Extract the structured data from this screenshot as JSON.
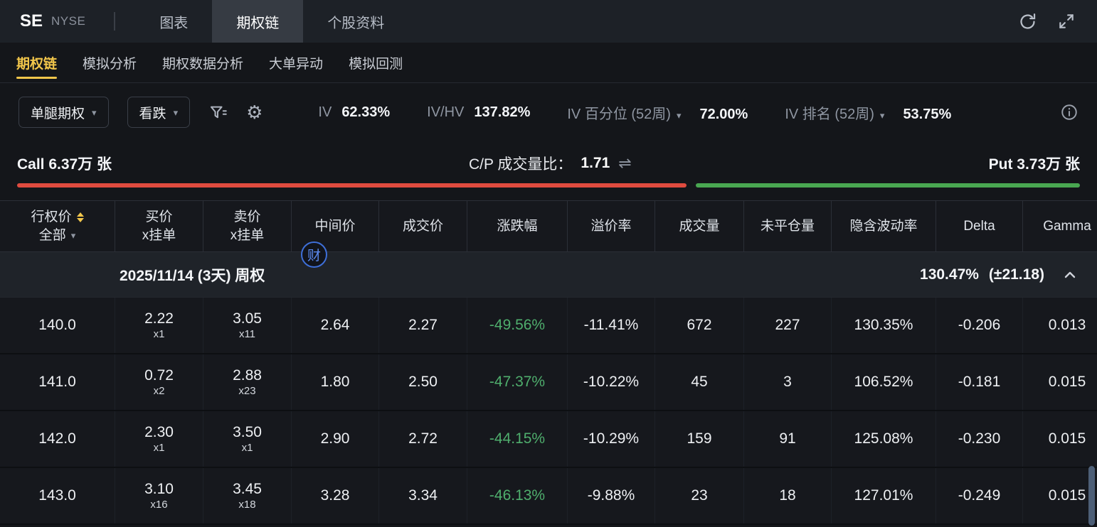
{
  "app_bar": {
    "symbol": "SE",
    "exchange": "NYSE",
    "tabs": [
      {
        "label": "图表",
        "active": false
      },
      {
        "label": "期权链",
        "active": true
      },
      {
        "label": "个股资料",
        "active": false
      }
    ]
  },
  "nav": {
    "tabs": [
      {
        "label": "期权链",
        "active": true
      },
      {
        "label": "模拟分析",
        "active": false
      },
      {
        "label": "期权数据分析",
        "active": false
      },
      {
        "label": "大单异动",
        "active": false
      },
      {
        "label": "模拟回测",
        "active": false
      }
    ]
  },
  "toolbar": {
    "strategy_dropdown": "单腿期权",
    "direction_dropdown": "看跌",
    "iv_label": "IV",
    "iv_value": "62.33%",
    "iv_hv_label": "IV/HV",
    "iv_hv_value": "137.82%",
    "iv_percentile_label": "IV 百分位 (52周)",
    "iv_percentile_value": "72.00%",
    "iv_rank_label": "IV 排名 (52周)",
    "iv_rank_value": "53.75%"
  },
  "ratio_bar": {
    "call_label": "Call 6.37万 张",
    "cp_label": "C/P 成交量比：",
    "cp_value": "1.71",
    "put_label": "Put 3.73万 张",
    "call_pct": 63
  },
  "watermark": "财",
  "icons": {
    "gear": "⚙",
    "swap": "⇌",
    "caret_down": "▾"
  },
  "table": {
    "headers": {
      "strike_line1": "行权价",
      "strike_line2": "全部",
      "bid_line1": "买价",
      "bid_line2": "x挂单",
      "ask_line1": "卖价",
      "ask_line2": "x挂单",
      "mid": "中间价",
      "last": "成交价",
      "change": "涨跌幅",
      "premium": "溢价率",
      "volume": "成交量",
      "open_interest": "未平仓量",
      "iv": "隐含波动率",
      "delta": "Delta",
      "gamma": "Gamma"
    },
    "group": {
      "date_label": "2025/11/14 (3天) 周权",
      "iv_value": "130.47%",
      "expected_move": "(±21.18)"
    },
    "rows": [
      {
        "strike": "140.0",
        "bid": "2.22",
        "bid_size": "x1",
        "ask": "3.05",
        "ask_size": "x11",
        "mid": "2.64",
        "last": "2.27",
        "change": "-49.56%",
        "premium": "-11.41%",
        "volume": "672",
        "open_interest": "227",
        "iv": "130.35%",
        "delta": "-0.206",
        "gamma": "0.013"
      },
      {
        "strike": "141.0",
        "bid": "0.72",
        "bid_size": "x2",
        "ask": "2.88",
        "ask_size": "x23",
        "mid": "1.80",
        "last": "2.50",
        "change": "-47.37%",
        "premium": "-10.22%",
        "volume": "45",
        "open_interest": "3",
        "iv": "106.52%",
        "delta": "-0.181",
        "gamma": "0.015"
      },
      {
        "strike": "142.0",
        "bid": "2.30",
        "bid_size": "x1",
        "ask": "3.50",
        "ask_size": "x1",
        "mid": "2.90",
        "last": "2.72",
        "change": "-44.15%",
        "premium": "-10.29%",
        "volume": "159",
        "open_interest": "91",
        "iv": "125.08%",
        "delta": "-0.230",
        "gamma": "0.015"
      },
      {
        "strike": "143.0",
        "bid": "3.10",
        "bid_size": "x16",
        "ask": "3.45",
        "ask_size": "x18",
        "mid": "3.28",
        "last": "3.34",
        "change": "-46.13%",
        "premium": "-9.88%",
        "volume": "23",
        "open_interest": "18",
        "iv": "127.01%",
        "delta": "-0.249",
        "gamma": "0.015"
      }
    ]
  },
  "colors": {
    "accent_yellow": "#f2c64b",
    "down_green": "#4fae6d",
    "call_red": "#df4b3f",
    "put_green": "#49a751",
    "badge_blue": "#3e6fd8"
  }
}
